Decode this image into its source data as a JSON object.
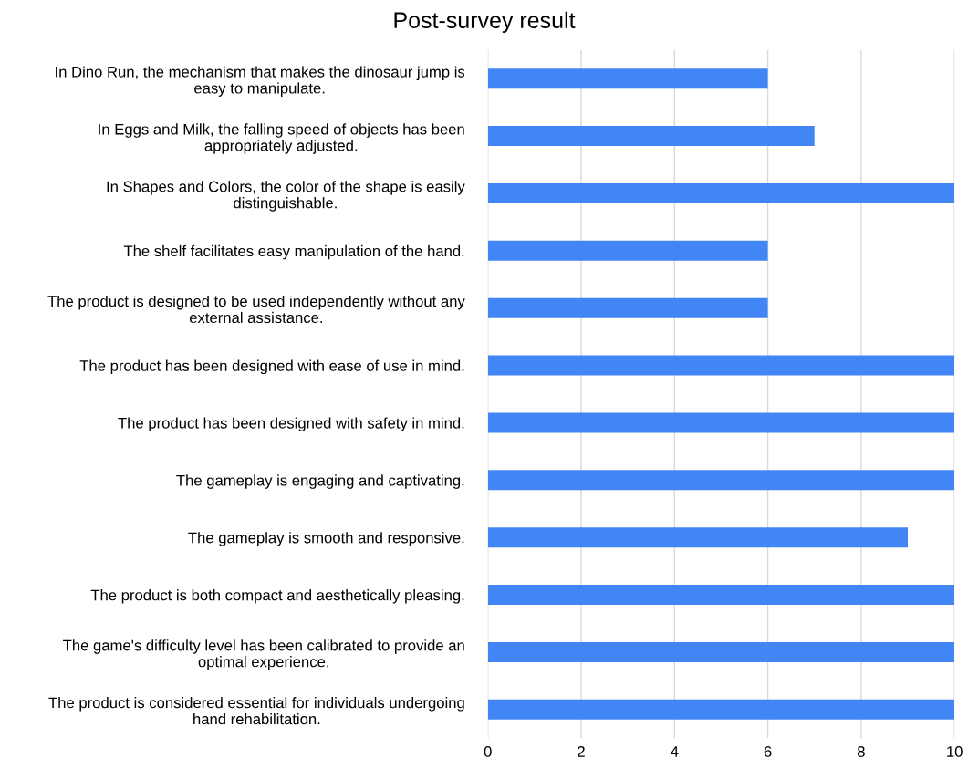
{
  "chart_data": {
    "type": "bar",
    "orientation": "horizontal",
    "title": "Post-survey result",
    "categories": [
      "In Dino Run, the mechanism that makes the dinosaur jump is\neasy to manipulate.",
      "In Eggs and Milk, the falling speed of objects has been\nappropriately adjusted.",
      "In Shapes and Colors, the color of the shape is easily\ndistinguishable.",
      "The shelf facilitates easy manipulation of the hand.",
      "The product is designed to be used independently without any\nexternal assistance.",
      "The product has been designed with ease of use in mind.",
      "The product has been designed with safety in mind.",
      "The gameplay is engaging and captivating.",
      "The gameplay is smooth and responsive.",
      "The product is both compact and aesthetically pleasing.",
      "The game's difficulty level has been calibrated to provide an\noptimal experience.",
      "The product is considered essential for individuals undergoing\nhand rehabilitation."
    ],
    "values": [
      6,
      7,
      10,
      6,
      6,
      10,
      10,
      10,
      9,
      10,
      10,
      10
    ],
    "color": "#4285f4",
    "xlim": [
      0,
      10
    ],
    "xticks": [
      0,
      2,
      4,
      6,
      8,
      10
    ],
    "grid": "x"
  }
}
